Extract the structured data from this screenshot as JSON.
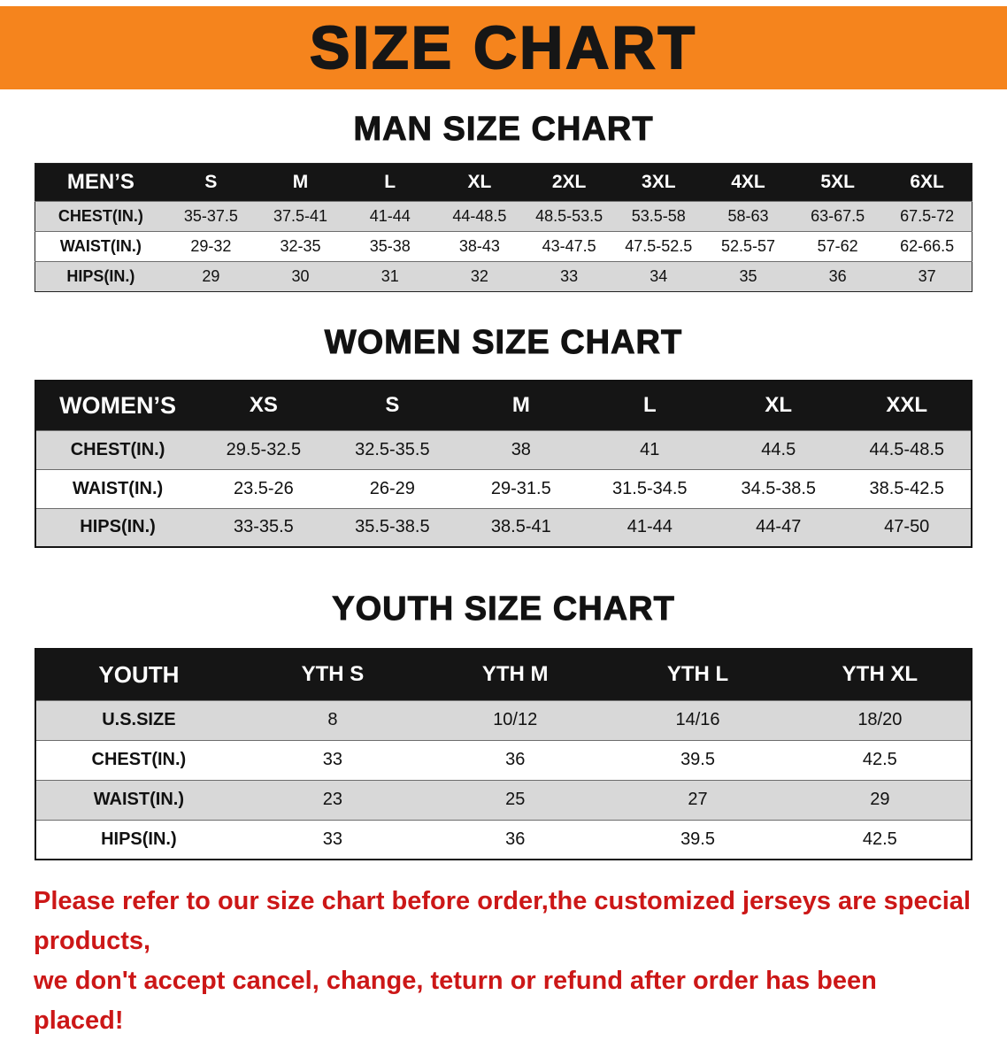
{
  "banner": {
    "title": "SIZE CHART",
    "bg_color": "#f5841d",
    "text_color": "#161616"
  },
  "sections": [
    {
      "heading": "MAN SIZE CHART",
      "table": {
        "header": [
          "MEN’S",
          "S",
          "M",
          "L",
          "XL",
          "2XL",
          "3XL",
          "4XL",
          "5XL",
          "6XL"
        ],
        "rows": [
          {
            "label": "CHEST(IN.)",
            "values": [
              "35-37.5",
              "37.5-41",
              "41-44",
              "44-48.5",
              "48.5-53.5",
              "53.5-58",
              "58-63",
              "63-67.5",
              "67.5-72"
            ]
          },
          {
            "label": "WAIST(IN.)",
            "values": [
              "29-32",
              "32-35",
              "35-38",
              "38-43",
              "43-47.5",
              "47.5-52.5",
              "52.5-57",
              "57-62",
              "62-66.5"
            ]
          },
          {
            "label": "HIPS(IN.)",
            "values": [
              "29",
              "30",
              "31",
              "32",
              "33",
              "34",
              "35",
              "36",
              "37"
            ]
          }
        ]
      }
    },
    {
      "heading": "WOMEN SIZE CHART",
      "table": {
        "header": [
          "WOMEN’S",
          "XS",
          "S",
          "M",
          "L",
          "XL",
          "XXL"
        ],
        "rows": [
          {
            "label": "CHEST(IN.)",
            "values": [
              "29.5-32.5",
              "32.5-35.5",
              "38",
              "41",
              "44.5",
              "44.5-48.5"
            ]
          },
          {
            "label": "WAIST(IN.)",
            "values": [
              "23.5-26",
              "26-29",
              "29-31.5",
              "31.5-34.5",
              "34.5-38.5",
              "38.5-42.5"
            ]
          },
          {
            "label": "HIPS(IN.)",
            "values": [
              "33-35.5",
              "35.5-38.5",
              "38.5-41",
              "41-44",
              "44-47",
              "47-50"
            ]
          }
        ]
      }
    },
    {
      "heading": "YOUTH SIZE CHART",
      "table": {
        "header": [
          "YOUTH",
          "YTH S",
          "YTH M",
          "YTH L",
          "YTH XL"
        ],
        "rows": [
          {
            "label": "U.S.SIZE",
            "values": [
              "8",
              "10/12",
              "14/16",
              "18/20"
            ]
          },
          {
            "label": "CHEST(IN.)",
            "values": [
              "33",
              "36",
              "39.5",
              "42.5"
            ]
          },
          {
            "label": "WAIST(IN.)",
            "values": [
              "23",
              "25",
              "27",
              "29"
            ]
          },
          {
            "label": "HIPS(IN.)",
            "values": [
              "33",
              "36",
              "39.5",
              "42.5"
            ]
          }
        ]
      }
    }
  ],
  "disclaimer": {
    "line1": "Please refer to our size chart before order,the customized jerseys are special products,",
    "line2": "we don't accept cancel, change, teturn or refund after order has been placed!",
    "color": "#cc1717"
  },
  "row_colors": {
    "shaded": "#d8d8d8",
    "plain": "#ffffff",
    "header_bg": "#151515",
    "header_text": "#ffffff"
  }
}
